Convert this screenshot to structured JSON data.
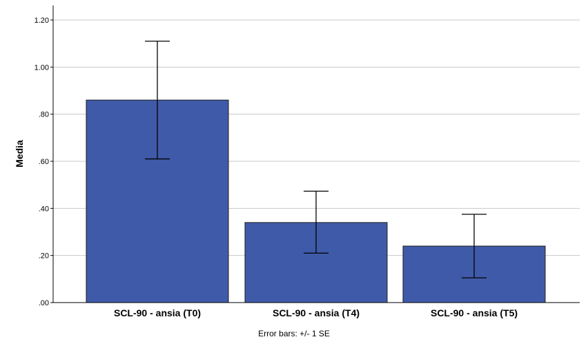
{
  "chart_data": {
    "type": "bar",
    "categories": [
      "SCL-90 - ansia (T0)",
      "SCL-90 - ansia (T4)",
      "SCL-90 - ansia (T5)"
    ],
    "values": [
      0.86,
      0.34,
      0.24
    ],
    "error_bars": {
      "low": [
        0.61,
        0.21,
        0.105
      ],
      "high": [
        1.11,
        0.473,
        0.375
      ]
    },
    "ylabel": "Media",
    "ylim": [
      0,
      1.2
    ],
    "yticks": [
      ".00",
      ".20",
      ".40",
      ".60",
      ".80",
      "1.00",
      "1.20"
    ],
    "ytick_values": [
      0,
      0.2,
      0.4,
      0.6,
      0.8,
      1.0,
      1.2
    ],
    "note": "Error bars: +/- 1 SE",
    "grid": "horizontal",
    "colors": {
      "bar": "#3f5aa8",
      "bar_edge": "#1e1e1e",
      "grid": "#c8c8c8",
      "axis": "#000000"
    }
  }
}
